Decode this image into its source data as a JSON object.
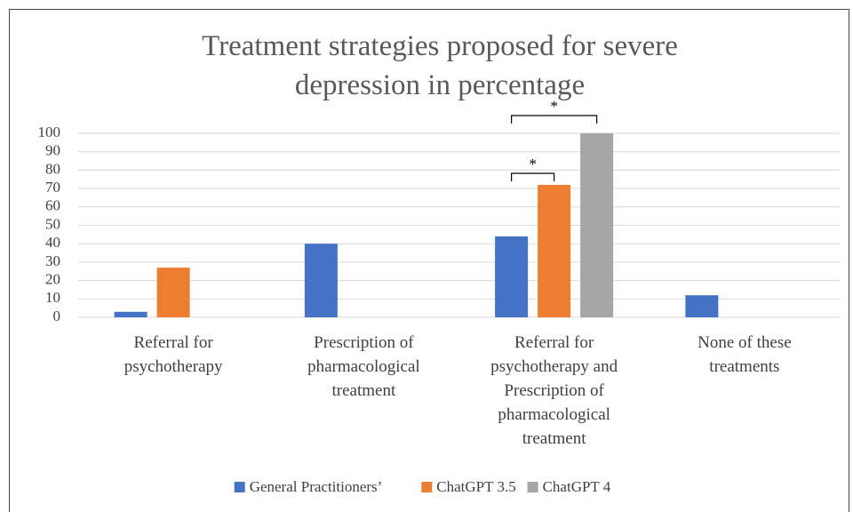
{
  "chart_data": {
    "type": "bar",
    "title": "Treatment strategies proposed for severe depression in percentage",
    "categories": [
      "Referral for psychotherapy",
      "Prescription of pharmacological treatment",
      "Referral for psychotherapy and Prescription of pharmacological treatment",
      "None of these treatments"
    ],
    "series": [
      {
        "name": "General Practitioners’",
        "color": "#4472c4",
        "values": [
          3,
          40,
          44,
          12
        ]
      },
      {
        "name": "ChatGPT 3.5",
        "color": "#ed7d31",
        "values": [
          27,
          0,
          72,
          0
        ]
      },
      {
        "name": "ChatGPT 4",
        "color": "#a5a5a5",
        "values": [
          0,
          0,
          100,
          0
        ]
      }
    ],
    "ylim": [
      0,
      100
    ],
    "yticks": [
      0,
      10,
      20,
      30,
      40,
      50,
      60,
      70,
      80,
      90,
      100
    ],
    "grid": true,
    "legend": "bottom",
    "annotations": [
      "*",
      "*"
    ]
  }
}
